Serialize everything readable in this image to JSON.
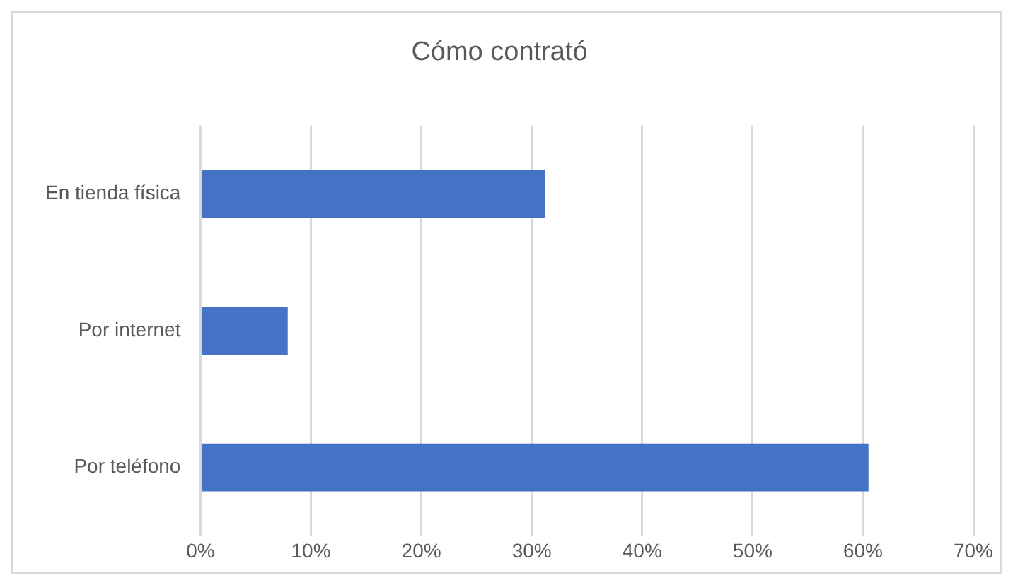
{
  "chart_data": {
    "type": "bar",
    "title": "Cómo contrató",
    "orientation": "horizontal",
    "categories": [
      "En tienda física",
      "Por internet",
      "Por teléfono"
    ],
    "values": [
      31.2,
      7.9,
      60.5
    ],
    "color": "#4472c4",
    "xlim": [
      0,
      70
    ],
    "xticks": [
      {
        "value": 0,
        "label": "0%"
      },
      {
        "value": 10,
        "label": "10%"
      },
      {
        "value": 20,
        "label": "20%"
      },
      {
        "value": 30,
        "label": "30%"
      },
      {
        "value": 40,
        "label": "40%"
      },
      {
        "value": 50,
        "label": "50%"
      },
      {
        "value": 60,
        "label": "60%"
      },
      {
        "value": 70,
        "label": "70%"
      }
    ],
    "grid": "x",
    "legend": false
  }
}
